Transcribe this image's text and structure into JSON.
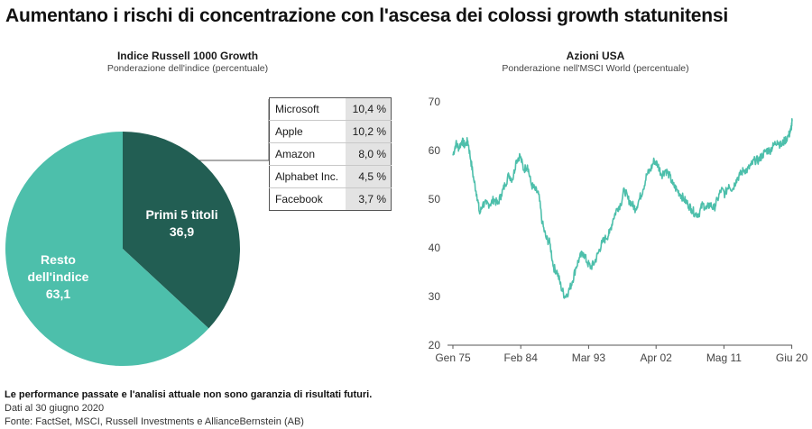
{
  "title": "Aumentano i rischi di concentrazione con l'ascesa dei colossi growth statunitensi",
  "left_panel": {
    "heading": "Indice Russell 1000 Growth",
    "subheading": "Ponderazione dell'indice (percentuale)"
  },
  "right_panel": {
    "heading": "Azioni USA",
    "subheading": "Ponderazione nell'MSCI World (percentuale)"
  },
  "top5_table": [
    {
      "name": "Microsoft",
      "value": "10,4 %"
    },
    {
      "name": "Apple",
      "value": "10,2 %"
    },
    {
      "name": "Amazon",
      "value": "8,0 %"
    },
    {
      "name": "Alphabet Inc.",
      "value": "4,5 %"
    },
    {
      "name": "Facebook",
      "value": "3,7 %"
    }
  ],
  "footer": {
    "disclaimer": "Le performance passate e l'analisi attuale non sono garanzia di risultati futuri.",
    "date_note": "Dati al 30 giugno 2020",
    "source": "Fonte: FactSet, MSCI, Russell Investments e AllianceBernstein (AB)"
  },
  "colors": {
    "dark_teal": "#225e53",
    "light_teal": "#4dbfab",
    "line": "#4dbfab"
  },
  "chart_data": [
    {
      "type": "pie",
      "title": "Indice Russell 1000 Growth",
      "slices": [
        {
          "label_lines": [
            "Primi 5 titoli",
            "36,9"
          ],
          "value": 36.9,
          "color": "#225e53"
        },
        {
          "label_lines": [
            "Resto",
            "dell'indice",
            "63,1"
          ],
          "value": 63.1,
          "color": "#4dbfab"
        }
      ]
    },
    {
      "type": "line",
      "title": "Azioni USA",
      "xlabel": "",
      "ylabel": "",
      "ylim": [
        20,
        70
      ],
      "yticks": [
        20,
        30,
        40,
        50,
        60,
        70
      ],
      "xlim": [
        1975.0,
        2020.5
      ],
      "xticks": [
        {
          "label": "Gen 75",
          "x": 1975.0
        },
        {
          "label": "Feb 84",
          "x": 1984.1
        },
        {
          "label": "Mar 93",
          "x": 1993.2
        },
        {
          "label": "Apr 02",
          "x": 2002.25
        },
        {
          "label": "Mag 11",
          "x": 2011.35
        },
        {
          "label": "Giu 20",
          "x": 2020.45
        }
      ],
      "grid": false,
      "x": [
        1975.0,
        1975.4,
        1975.8,
        1976.2,
        1976.6,
        1977.0,
        1977.4,
        1977.8,
        1978.2,
        1978.6,
        1979.0,
        1979.5,
        1980.0,
        1980.5,
        1981.0,
        1981.5,
        1982.0,
        1982.5,
        1983.0,
        1983.5,
        1984.0,
        1984.5,
        1985.0,
        1985.5,
        1986.0,
        1986.5,
        1987.0,
        1987.5,
        1988.0,
        1988.5,
        1989.0,
        1989.5,
        1990.0,
        1990.5,
        1991.0,
        1991.5,
        1992.0,
        1992.5,
        1993.0,
        1993.5,
        1994.0,
        1994.5,
        1995.0,
        1995.5,
        1996.0,
        1996.5,
        1997.0,
        1997.5,
        1998.0,
        1998.5,
        1999.0,
        1999.5,
        2000.0,
        2000.5,
        2001.0,
        2001.5,
        2002.0,
        2002.5,
        2003.0,
        2003.5,
        2004.0,
        2004.5,
        2005.0,
        2005.5,
        2006.0,
        2006.5,
        2007.0,
        2007.5,
        2008.0,
        2008.5,
        2009.0,
        2009.5,
        2010.0,
        2010.5,
        2011.0,
        2011.5,
        2012.0,
        2012.5,
        2013.0,
        2013.5,
        2014.0,
        2014.5,
        2015.0,
        2015.5,
        2016.0,
        2016.5,
        2017.0,
        2017.5,
        2018.0,
        2018.5,
        2019.0,
        2019.5,
        2020.0,
        2020.3,
        2020.5
      ],
      "y": [
        59,
        61.5,
        60.5,
        62,
        61,
        62,
        58,
        54,
        51,
        47,
        49,
        49,
        49,
        50,
        49,
        51,
        53,
        55,
        54,
        58,
        59,
        56,
        57,
        53,
        52,
        51,
        45,
        42,
        41,
        36,
        35,
        32,
        30,
        31,
        33,
        36,
        38,
        39,
        37,
        36,
        37,
        39,
        41,
        42,
        43,
        46,
        48,
        49,
        52,
        50,
        49,
        48,
        50,
        52,
        55,
        56,
        58,
        57,
        55,
        56,
        55,
        53,
        52,
        51,
        50,
        49,
        48,
        47,
        47,
        49,
        48,
        49,
        48,
        50,
        52,
        51,
        53,
        52,
        54,
        55,
        56,
        56,
        57,
        58,
        58,
        59,
        60,
        60,
        61,
        62,
        61,
        62,
        63,
        64,
        66
      ]
    }
  ]
}
